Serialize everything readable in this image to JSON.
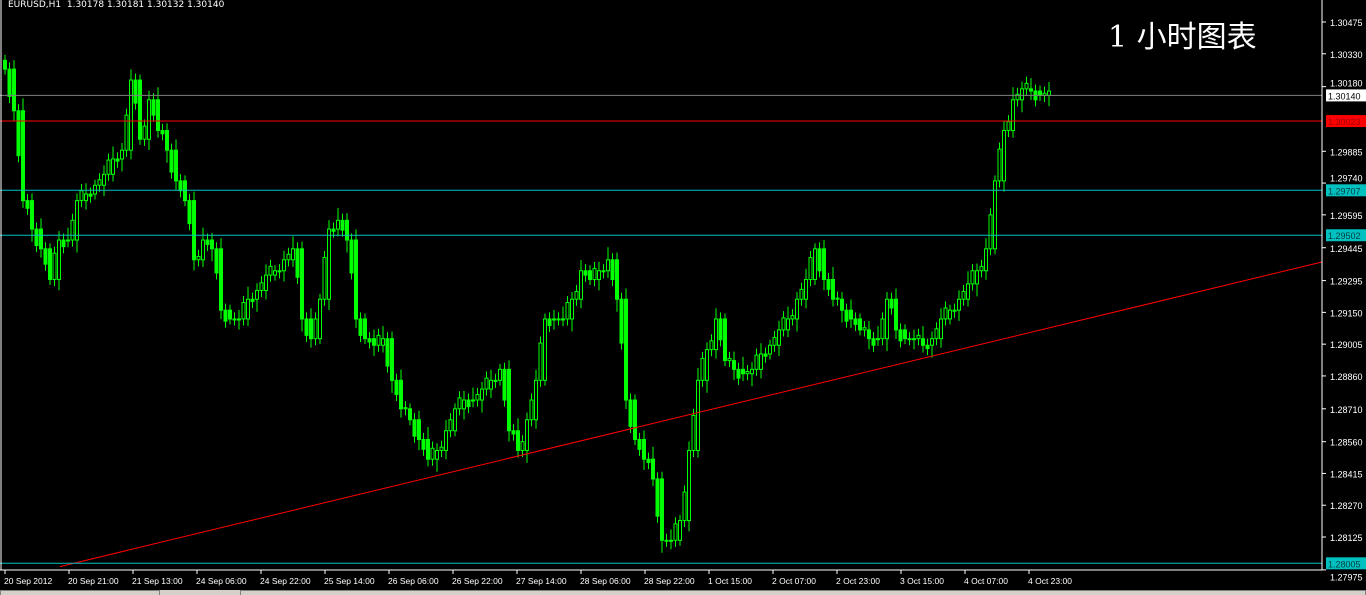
{
  "header": {
    "symbol": "EURUSD,H1",
    "ohlc": "1.30178 1.30181 1.30132 1.30140"
  },
  "overlay_title": "1 小时图表",
  "colors": {
    "background": "#000000",
    "candle": "#00ff00",
    "grid_frame": "#ffffff",
    "support_line": "#00c0c0",
    "resistance_line": "#ff0000",
    "trend_line": "#ff0000",
    "price_line": "#808080"
  },
  "chart_data": {
    "type": "candlestick",
    "title": "1 小时图表",
    "ylim": [
      1.27975,
      1.306
    ],
    "y_ticks": [
      "1.30475",
      "1.30330",
      "1.30180",
      "1.29885",
      "1.29740",
      "1.29595",
      "1.29445",
      "1.29295",
      "1.29150",
      "1.29005",
      "1.28860",
      "1.28710",
      "1.28560",
      "1.28415",
      "1.28270",
      "1.28125",
      "1.27975"
    ],
    "x_ticks": [
      "20 Sep 2012",
      "20 Sep 21:00",
      "21 Sep 13:00",
      "24 Sep 06:00",
      "24 Sep 22:00",
      "25 Sep 14:00",
      "26 Sep 06:00",
      "26 Sep 22:00",
      "27 Sep 14:00",
      "28 Sep 06:00",
      "28 Sep 22:00",
      "1 Oct 15:00",
      "2 Oct 07:00",
      "2 Oct 23:00",
      "3 Oct 15:00",
      "4 Oct 07:00",
      "4 Oct 23:00"
    ],
    "closes": [
      1.3026,
      1.3007,
      1.2966,
      1.2953,
      1.2944,
      1.293,
      1.2948,
      1.2948,
      1.2966,
      1.2969,
      1.2973,
      1.2978,
      1.2985,
      1.2989,
      1.3021,
      1.2994,
      1.3012,
      1.2998,
      1.2989,
      1.2975,
      1.2966,
      1.2939,
      1.2948,
      1.2944,
      1.2916,
      1.2912,
      1.2912,
      1.2921,
      1.2925,
      1.2932,
      1.2934,
      1.2939,
      1.2944,
      1.2912,
      1.2903,
      1.2921,
      1.2953,
      1.2957,
      1.2948,
      1.2912,
      1.2903,
      1.29,
      1.2903,
      1.2884,
      1.2871,
      1.2866,
      1.2857,
      1.2848,
      1.2852,
      1.2861,
      1.2871,
      1.2875,
      1.2875,
      1.288,
      1.2884,
      1.2889,
      1.2861,
      1.2852,
      1.2866,
      1.2884,
      1.2912,
      1.2912,
      1.2912,
      1.2921,
      1.2934,
      1.293,
      1.2934,
      1.2939,
      1.2921,
      1.2875,
      1.2857,
      1.2848,
      1.2839,
      1.2811,
      1.2811,
      1.282,
      1.2852,
      1.2884,
      1.2898,
      1.2912,
      1.2893,
      1.2889,
      1.2887,
      1.2889,
      1.2896,
      1.29,
      1.2907,
      1.2912,
      1.2921,
      1.293,
      1.2944,
      1.293,
      1.2921,
      1.2916,
      1.2912,
      1.2907,
      1.2903,
      1.2903,
      1.2921,
      1.2907,
      1.2903,
      1.2903,
      1.29,
      1.2903,
      1.2912,
      1.2916,
      1.2921,
      1.2928,
      1.2934,
      1.2944,
      1.2975,
      1.2998,
      1.3012,
      1.3017,
      1.3016,
      1.3014,
      1.3016
    ],
    "hlines": [
      {
        "price": 1.3014,
        "label": "1.30140",
        "kind": "current"
      },
      {
        "price": 1.30023,
        "label": "1.30023",
        "kind": "resistance"
      },
      {
        "price": 1.29707,
        "label": "1.29707",
        "kind": "support"
      },
      {
        "price": 1.29502,
        "label": "1.29502",
        "kind": "support"
      },
      {
        "price": 1.28005,
        "label": "1.28005",
        "kind": "support"
      }
    ],
    "trendline": {
      "start_price": 1.2799,
      "end_price": 1.2938
    }
  }
}
